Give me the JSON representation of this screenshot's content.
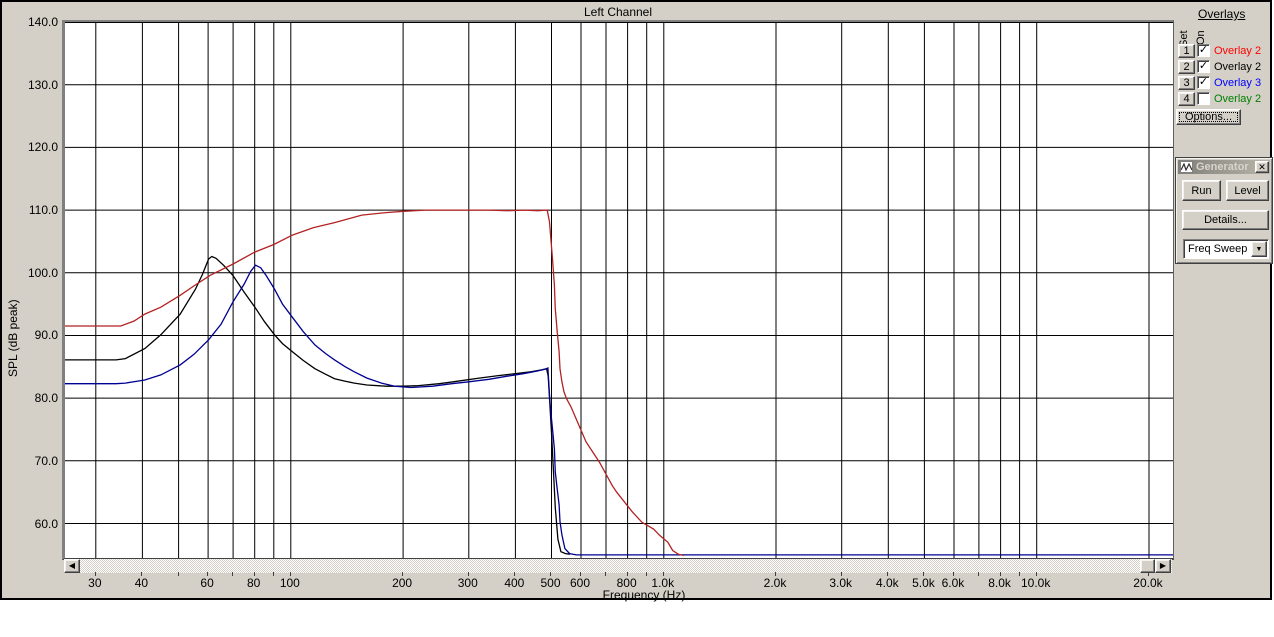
{
  "window": {
    "bg": "#D4D0C8"
  },
  "chart_data": {
    "type": "line",
    "title": "Left Channel",
    "xlabel": "Frequency (Hz)",
    "ylabel": "SPL (dB peak)",
    "x_scale": "log",
    "x_range": [
      24.8,
      23200
    ],
    "y_range": [
      54.5,
      140
    ],
    "grid": true,
    "grid_color": "#000000",
    "y_ticks": [
      {
        "v": 140,
        "label": "140.0"
      },
      {
        "v": 130,
        "label": "130.0"
      },
      {
        "v": 120,
        "label": "120.0"
      },
      {
        "v": 110,
        "label": "110.0"
      },
      {
        "v": 100,
        "label": "100.0"
      },
      {
        "v": 90,
        "label": "90.0"
      },
      {
        "v": 80,
        "label": "80.0"
      },
      {
        "v": 70,
        "label": "70.0"
      },
      {
        "v": 60,
        "label": "60.0"
      }
    ],
    "x_gridlines": [
      30,
      40,
      50,
      60,
      70,
      80,
      90,
      100,
      200,
      300,
      400,
      500,
      600,
      700,
      800,
      900,
      1000,
      2000,
      3000,
      4000,
      5000,
      6000,
      7000,
      8000,
      9000,
      10000,
      20000
    ],
    "x_tick_labels": [
      {
        "f": 30,
        "label": "30"
      },
      {
        "f": 40,
        "label": "40"
      },
      {
        "f": 60,
        "label": "60"
      },
      {
        "f": 80,
        "label": "80"
      },
      {
        "f": 100,
        "label": "100"
      },
      {
        "f": 200,
        "label": "200"
      },
      {
        "f": 300,
        "label": "300"
      },
      {
        "f": 400,
        "label": "400"
      },
      {
        "f": 500,
        "label": "500"
      },
      {
        "f": 600,
        "label": "600"
      },
      {
        "f": 800,
        "label": "800"
      },
      {
        "f": 1000,
        "label": "1.0k"
      },
      {
        "f": 2000,
        "label": "2.0k"
      },
      {
        "f": 3000,
        "label": "3.0k"
      },
      {
        "f": 4000,
        "label": "4.0k"
      },
      {
        "f": 5000,
        "label": "5.0k"
      },
      {
        "f": 6000,
        "label": "6.0k"
      },
      {
        "f": 8000,
        "label": "8.0k"
      },
      {
        "f": 10000,
        "label": "10.0k"
      },
      {
        "f": 20000,
        "label": "20.0k"
      }
    ],
    "series": [
      {
        "name": "black-trace",
        "color": "#000000",
        "points": [
          [
            24.8,
            86.1
          ],
          [
            30,
            86.1
          ],
          [
            34,
            86.1
          ],
          [
            36,
            86.3
          ],
          [
            40.6,
            87.9
          ],
          [
            44.8,
            90.1
          ],
          [
            50.5,
            93.4
          ],
          [
            55.5,
            97.4
          ],
          [
            58,
            99.8
          ],
          [
            60.2,
            102.2
          ],
          [
            61.4,
            102.6
          ],
          [
            63,
            102.3
          ],
          [
            66,
            101.2
          ],
          [
            69.9,
            99.6
          ],
          [
            75,
            96.9
          ],
          [
            80.1,
            94.5
          ],
          [
            85,
            92.2
          ],
          [
            90.4,
            90.1
          ],
          [
            95,
            88.7
          ],
          [
            101,
            87.4
          ],
          [
            108,
            86.0
          ],
          [
            116,
            84.7
          ],
          [
            124,
            83.8
          ],
          [
            131,
            83.1
          ],
          [
            140,
            82.7
          ],
          [
            148,
            82.4
          ],
          [
            160,
            82.1
          ],
          [
            180,
            81.9
          ],
          [
            200,
            81.9
          ],
          [
            220,
            82.0
          ],
          [
            250,
            82.3
          ],
          [
            280,
            82.7
          ],
          [
            320,
            83.2
          ],
          [
            360,
            83.6
          ],
          [
            400,
            83.9
          ],
          [
            440,
            84.2
          ],
          [
            470,
            84.5
          ],
          [
            485,
            84.7
          ],
          [
            490,
            83.5
          ],
          [
            494,
            80.0
          ],
          [
            500,
            74.5
          ],
          [
            506,
            68.5
          ],
          [
            512,
            62.5
          ],
          [
            520,
            57.5
          ],
          [
            530,
            55.5
          ],
          [
            545,
            55.2
          ],
          [
            560,
            55.1
          ]
        ]
      },
      {
        "name": "blue-trace",
        "color": "#000090",
        "points": [
          [
            24.8,
            82.3
          ],
          [
            30,
            82.3
          ],
          [
            34,
            82.3
          ],
          [
            36,
            82.4
          ],
          [
            40.6,
            82.9
          ],
          [
            44.8,
            83.7
          ],
          [
            50.5,
            85.3
          ],
          [
            55,
            87.0
          ],
          [
            60.2,
            89.3
          ],
          [
            65,
            91.8
          ],
          [
            69.9,
            95.3
          ],
          [
            75,
            98.2
          ],
          [
            78,
            100.2
          ],
          [
            80.4,
            101.2
          ],
          [
            83,
            100.8
          ],
          [
            86,
            99.5
          ],
          [
            90.4,
            97.4
          ],
          [
            95,
            95.0
          ],
          [
            101,
            92.9
          ],
          [
            108,
            90.6
          ],
          [
            116,
            88.5
          ],
          [
            124,
            87.1
          ],
          [
            131,
            86.1
          ],
          [
            140,
            85.0
          ],
          [
            148,
            84.2
          ],
          [
            160,
            83.2
          ],
          [
            175,
            82.4
          ],
          [
            190,
            81.9
          ],
          [
            210,
            81.7
          ],
          [
            240,
            81.9
          ],
          [
            270,
            82.3
          ],
          [
            300,
            82.6
          ],
          [
            340,
            83.0
          ],
          [
            380,
            83.5
          ],
          [
            420,
            83.9
          ],
          [
            455,
            84.3
          ],
          [
            480,
            84.6
          ],
          [
            489,
            84.8
          ],
          [
            494,
            80.5
          ],
          [
            497,
            78.3
          ],
          [
            503,
            75.1
          ],
          [
            509,
            71.9
          ],
          [
            512,
            68.2
          ],
          [
            518,
            65.5
          ],
          [
            524,
            63.0
          ],
          [
            527,
            60.3
          ],
          [
            533,
            58.2
          ],
          [
            543,
            56.0
          ],
          [
            559,
            55.2
          ],
          [
            583,
            55.0
          ],
          [
            700,
            55.0
          ],
          [
            1000,
            55.0
          ],
          [
            2000,
            55.0
          ],
          [
            5000,
            55.0
          ],
          [
            10000,
            55.0
          ],
          [
            20000,
            55.0
          ],
          [
            23200,
            55.0
          ]
        ]
      },
      {
        "name": "red-trace",
        "color": "#B22222",
        "points": [
          [
            24.8,
            91.5
          ],
          [
            30,
            91.5
          ],
          [
            35,
            91.5
          ],
          [
            38,
            92.3
          ],
          [
            40.6,
            93.4
          ],
          [
            44.8,
            94.5
          ],
          [
            50.5,
            96.4
          ],
          [
            55,
            97.9
          ],
          [
            60.8,
            99.6
          ],
          [
            70,
            101.4
          ],
          [
            80,
            103.3
          ],
          [
            90,
            104.5
          ],
          [
            101,
            106.0
          ],
          [
            115,
            107.2
          ],
          [
            131,
            108.0
          ],
          [
            155,
            109.2
          ],
          [
            180,
            109.6
          ],
          [
            200,
            109.8
          ],
          [
            230,
            110.0
          ],
          [
            260,
            110.0
          ],
          [
            300,
            110.0
          ],
          [
            340,
            110.0
          ],
          [
            380,
            109.9
          ],
          [
            420,
            110.0
          ],
          [
            460,
            109.9
          ],
          [
            487,
            110.0
          ],
          [
            494,
            108.1
          ],
          [
            503,
            102.2
          ],
          [
            509,
            98.0
          ],
          [
            512,
            94.2
          ],
          [
            518,
            90.6
          ],
          [
            524,
            87.4
          ],
          [
            527,
            84.7
          ],
          [
            533,
            82.6
          ],
          [
            540,
            81.0
          ],
          [
            549,
            79.9
          ],
          [
            564,
            78.6
          ],
          [
            587,
            76.2
          ],
          [
            619,
            73.0
          ],
          [
            672,
            69.8
          ],
          [
            727,
            66.1
          ],
          [
            748,
            65.0
          ],
          [
            825,
            61.8
          ],
          [
            874,
            60.2
          ],
          [
            940,
            59.1
          ],
          [
            975,
            58.1
          ],
          [
            1026,
            57.0
          ],
          [
            1057,
            55.7
          ],
          [
            1094,
            55.1
          ],
          [
            1131,
            54.9
          ]
        ]
      }
    ]
  },
  "overlays_panel": {
    "heading": "Overlays",
    "set_label": "Set",
    "on_label": "On",
    "rows": [
      {
        "num": "1",
        "checked": true,
        "label": "Overlay 2",
        "color": "#FF0000"
      },
      {
        "num": "2",
        "checked": true,
        "label": "Overlay 2",
        "color": "#000000"
      },
      {
        "num": "3",
        "checked": true,
        "label": "Overlay 3",
        "color": "#0000FF"
      },
      {
        "num": "4",
        "checked": false,
        "label": "Overlay 2",
        "color": "#008000"
      }
    ],
    "check_glyph": "✓",
    "options_label": "Options..."
  },
  "generator": {
    "title": "Generator",
    "close_glyph": "✕",
    "run_label": "Run",
    "level_label": "Level",
    "details_label": "Details...",
    "sweep_value": "Freq Sweep",
    "dropdown_glyph": "▼"
  },
  "scrollbar": {
    "left_glyph": "◀",
    "right_glyph": "▶"
  }
}
